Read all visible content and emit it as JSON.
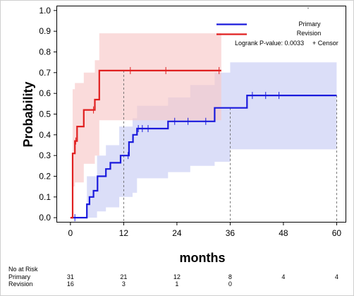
{
  "chart_data": {
    "type": "line",
    "title": "",
    "xlabel": "months",
    "ylabel": "Probability",
    "xlim": [
      -3,
      62
    ],
    "ylim": [
      -0.02,
      1.02
    ],
    "x_ticks": [
      0,
      12,
      24,
      36,
      48,
      60
    ],
    "y_ticks": [
      "0.0",
      "0.1",
      "0.2",
      "0.3",
      "0.4",
      "0.5",
      "0.6",
      "0.7",
      "0.8",
      "0.9",
      "1.0"
    ],
    "grid": false,
    "legend_position": "top-right",
    "colors": {
      "primary": "#1a1adc",
      "revision": "#e02020",
      "primary_band": "#c8ccf4",
      "revision_band": "#f8c8c8",
      "overlap_band": "#d8bfe0"
    },
    "legend": {
      "censor_mark": "'",
      "logrank_text": "Logrank P-value: 0.0033",
      "censor_text": "+ Censor"
    },
    "series": [
      {
        "name": "Primary",
        "color": "#1a1adc",
        "steps": [
          [
            0,
            0
          ],
          [
            3.7,
            0.065
          ],
          [
            4.3,
            0.1
          ],
          [
            5.2,
            0.13
          ],
          [
            6.1,
            0.2
          ],
          [
            8,
            0.235
          ],
          [
            9,
            0.265
          ],
          [
            11.3,
            0.3
          ],
          [
            13.2,
            0.365
          ],
          [
            14.1,
            0.4
          ],
          [
            15,
            0.43
          ],
          [
            22,
            0.465
          ],
          [
            32.5,
            0.53
          ],
          [
            39.8,
            0.59
          ],
          [
            60,
            0.59
          ]
        ],
        "censored_x": [
          1,
          13,
          15.3,
          16.2,
          17.5,
          23.5,
          26.5,
          30.5,
          41,
          44,
          47
        ],
        "ci_steps": [
          [
            0,
            0,
            0
          ],
          [
            3.7,
            0,
            0.2
          ],
          [
            6,
            0.03,
            0.3
          ],
          [
            8,
            0.05,
            0.35
          ],
          [
            11,
            0.1,
            0.44
          ],
          [
            14,
            0.12,
            0.48
          ],
          [
            15,
            0.19,
            0.54
          ],
          [
            22,
            0.22,
            0.58
          ],
          [
            27,
            0.25,
            0.64
          ],
          [
            32.5,
            0.27,
            0.7
          ],
          [
            36,
            0.33,
            0.75
          ],
          [
            60,
            0.33,
            0.75
          ]
        ]
      },
      {
        "name": "Revision",
        "color": "#e02020",
        "steps": [
          [
            0,
            0
          ],
          [
            0.5,
            0.31
          ],
          [
            1,
            0.37
          ],
          [
            1.5,
            0.44
          ],
          [
            3,
            0.52
          ],
          [
            5.5,
            0.57
          ],
          [
            6.5,
            0.71
          ],
          [
            34,
            0.71
          ]
        ],
        "censored_x": [
          1.2,
          5.2,
          13.5,
          21.5,
          33.5
        ],
        "ci_steps": [
          [
            0,
            0,
            0
          ],
          [
            0.5,
            0.15,
            0.62
          ],
          [
            1,
            0.17,
            0.65
          ],
          [
            3,
            0.26,
            0.7
          ],
          [
            5.5,
            0.3,
            0.76
          ],
          [
            6.5,
            0.47,
            0.89
          ],
          [
            34,
            0.47,
            0.89
          ]
        ]
      }
    ],
    "reference_lines": [
      {
        "x": 12,
        "y": 0.71
      },
      {
        "x": 36,
        "y": 0.53
      },
      {
        "x": 60,
        "y": 0.59
      }
    ],
    "at_risk": {
      "title": "No at Risk",
      "rows": [
        {
          "label": "Primary",
          "values": [
            "31",
            "21",
            "12",
            "8",
            "4",
            "4"
          ]
        },
        {
          "label": "Revision",
          "values": [
            "16",
            "3",
            "1",
            "0",
            "",
            ""
          ]
        }
      ]
    }
  }
}
